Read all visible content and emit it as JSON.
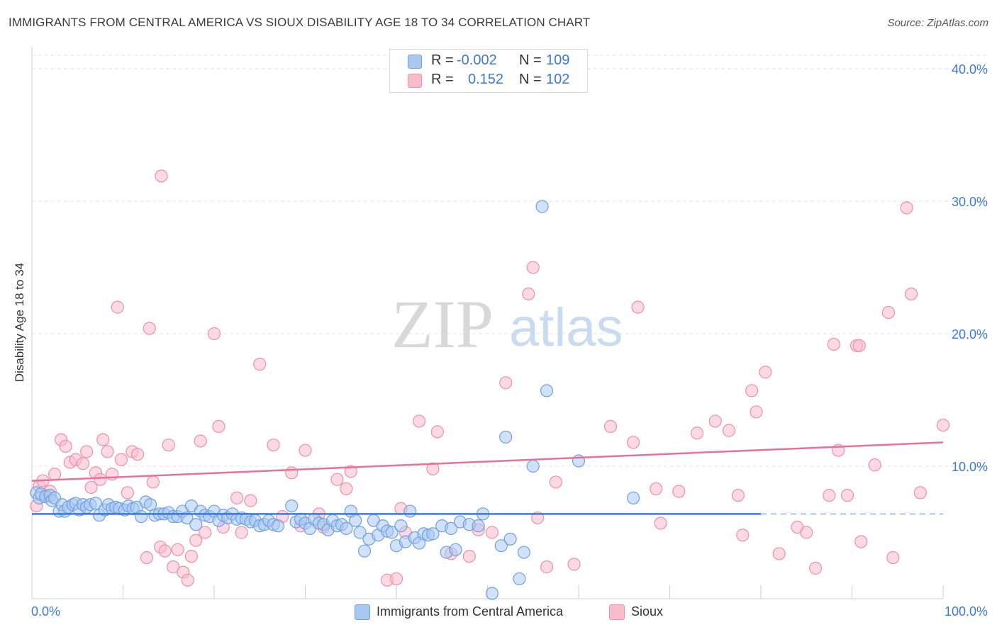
{
  "title": "IMMIGRANTS FROM CENTRAL AMERICA VS SIOUX DISABILITY AGE 18 TO 34 CORRELATION CHART",
  "source": "Source: ZipAtlas.com",
  "watermark": {
    "zip": "ZIP",
    "atlas": "atlas"
  },
  "legend": {
    "r_label": "R =",
    "n_label": "N =",
    "rows": [
      {
        "r": "-0.002",
        "n": "109",
        "color": "#a9c8f2"
      },
      {
        "r": "0.152",
        "n": "102",
        "color": "#f9bccd"
      }
    ]
  },
  "colors": {
    "blue_fill": "#a9c8f2",
    "blue_stroke": "#6fa1e0",
    "blue_line": "#3b79d8",
    "pink_fill": "#f9bccd",
    "pink_stroke": "#ee8fab",
    "pink_line": "#e8709a",
    "tick_label": "#3b79d8",
    "grid": "#e3e3e3"
  },
  "chart_data": {
    "type": "scatter",
    "title": "IMMIGRANTS FROM CENTRAL AMERICA VS SIOUX DISABILITY AGE 18 TO 34 CORRELATION CHART",
    "xlabel": "",
    "ylabel": "Disability Age 18 to 34",
    "xlim": [
      0,
      100
    ],
    "ylim": [
      0,
      40
    ],
    "x_tick_labels": [
      "0.0%",
      "100.0%"
    ],
    "y_ticks": [
      10,
      20,
      30,
      40
    ],
    "y_tick_labels": [
      "10.0%",
      "20.0%",
      "30.0%",
      "40.0%"
    ],
    "grid": true,
    "legend_placement": "top-center",
    "series": [
      {
        "name": "Immigrants from Central America",
        "R": -0.002,
        "N": 109,
        "trend": {
          "x": [
            0,
            80
          ],
          "y": [
            6.4,
            6.4
          ],
          "dashed_extension_to": 100
        },
        "points": [
          [
            0.5,
            8.0
          ],
          [
            0.8,
            7.6
          ],
          [
            1.0,
            7.9
          ],
          [
            1.5,
            7.7
          ],
          [
            2.0,
            7.8
          ],
          [
            2.2,
            7.4
          ],
          [
            2.5,
            7.6
          ],
          [
            3.0,
            6.6
          ],
          [
            3.3,
            7.1
          ],
          [
            3.6,
            6.6
          ],
          [
            4.0,
            6.9
          ],
          [
            4.5,
            7.1
          ],
          [
            4.8,
            7.2
          ],
          [
            5.2,
            6.7
          ],
          [
            5.6,
            7.1
          ],
          [
            6.0,
            6.9
          ],
          [
            6.4,
            7.1
          ],
          [
            7.0,
            7.2
          ],
          [
            7.4,
            6.3
          ],
          [
            8.0,
            6.7
          ],
          [
            8.4,
            7.1
          ],
          [
            8.8,
            6.8
          ],
          [
            9.2,
            6.9
          ],
          [
            9.6,
            6.8
          ],
          [
            10.2,
            6.7
          ],
          [
            10.6,
            7.0
          ],
          [
            11.1,
            6.8
          ],
          [
            11.5,
            6.9
          ],
          [
            12.0,
            6.2
          ],
          [
            12.5,
            7.3
          ],
          [
            13.0,
            7.1
          ],
          [
            13.5,
            6.3
          ],
          [
            14.0,
            6.4
          ],
          [
            14.5,
            6.4
          ],
          [
            15.0,
            6.5
          ],
          [
            15.5,
            6.2
          ],
          [
            16.0,
            6.2
          ],
          [
            16.5,
            6.6
          ],
          [
            17.0,
            6.1
          ],
          [
            17.5,
            7.0
          ],
          [
            18.0,
            5.6
          ],
          [
            18.5,
            6.6
          ],
          [
            19.0,
            6.3
          ],
          [
            19.5,
            6.2
          ],
          [
            20.0,
            6.6
          ],
          [
            20.5,
            5.9
          ],
          [
            21.0,
            6.3
          ],
          [
            21.5,
            6.1
          ],
          [
            22.0,
            6.4
          ],
          [
            22.5,
            6.0
          ],
          [
            23.0,
            6.1
          ],
          [
            23.5,
            6.0
          ],
          [
            24.0,
            5.8
          ],
          [
            24.5,
            5.9
          ],
          [
            25.0,
            5.5
          ],
          [
            25.5,
            5.6
          ],
          [
            26.0,
            5.9
          ],
          [
            26.5,
            5.6
          ],
          [
            27.0,
            5.5
          ],
          [
            28.5,
            7.0
          ],
          [
            29.0,
            5.8
          ],
          [
            29.5,
            6.0
          ],
          [
            30.0,
            5.7
          ],
          [
            30.5,
            5.3
          ],
          [
            31.0,
            6.0
          ],
          [
            31.5,
            5.7
          ],
          [
            32.0,
            5.6
          ],
          [
            32.5,
            5.2
          ],
          [
            33.0,
            5.9
          ],
          [
            33.5,
            5.5
          ],
          [
            34.0,
            5.6
          ],
          [
            34.5,
            5.3
          ],
          [
            35.0,
            6.6
          ],
          [
            35.5,
            5.9
          ],
          [
            36.0,
            5.0
          ],
          [
            36.5,
            3.6
          ],
          [
            37.0,
            4.5
          ],
          [
            37.5,
            5.9
          ],
          [
            38.0,
            4.8
          ],
          [
            38.5,
            5.5
          ],
          [
            39.0,
            5.1
          ],
          [
            39.5,
            5.0
          ],
          [
            40.0,
            4.0
          ],
          [
            40.5,
            5.5
          ],
          [
            41.0,
            4.3
          ],
          [
            41.5,
            6.6
          ],
          [
            42.0,
            4.6
          ],
          [
            42.5,
            4.2
          ],
          [
            43.0,
            4.9
          ],
          [
            43.5,
            4.8
          ],
          [
            44.0,
            4.9
          ],
          [
            45.0,
            5.5
          ],
          [
            45.5,
            3.5
          ],
          [
            46.0,
            5.3
          ],
          [
            46.5,
            3.7
          ],
          [
            47.0,
            5.8
          ],
          [
            48.0,
            5.6
          ],
          [
            49.0,
            5.5
          ],
          [
            49.5,
            6.4
          ],
          [
            50.5,
            0.4
          ],
          [
            51.5,
            4.0
          ],
          [
            52.5,
            4.5
          ],
          [
            53.5,
            1.5
          ],
          [
            54.0,
            3.5
          ],
          [
            56.0,
            29.6
          ],
          [
            56.5,
            15.7
          ],
          [
            52.0,
            12.2
          ],
          [
            55.0,
            10.0
          ],
          [
            60.0,
            10.4
          ],
          [
            66.0,
            7.6
          ]
        ]
      },
      {
        "name": "Sioux",
        "R": 0.152,
        "N": 102,
        "trend": {
          "x": [
            0,
            100
          ],
          "y": [
            8.9,
            11.8
          ]
        },
        "points": [
          [
            0.5,
            7.0
          ],
          [
            0.8,
            8.5
          ],
          [
            1.2,
            8.9
          ],
          [
            1.6,
            7.8
          ],
          [
            2.0,
            8.1
          ],
          [
            2.5,
            9.4
          ],
          [
            3.2,
            12.0
          ],
          [
            3.7,
            11.5
          ],
          [
            4.2,
            10.3
          ],
          [
            4.8,
            10.5
          ],
          [
            5.6,
            10.2
          ],
          [
            6.0,
            11.1
          ],
          [
            6.5,
            8.4
          ],
          [
            7.0,
            9.5
          ],
          [
            7.5,
            9.0
          ],
          [
            7.8,
            12.0
          ],
          [
            8.3,
            11.1
          ],
          [
            8.8,
            9.4
          ],
          [
            9.4,
            22.0
          ],
          [
            9.8,
            10.5
          ],
          [
            10.5,
            8.0
          ],
          [
            11.0,
            11.1
          ],
          [
            11.6,
            10.9
          ],
          [
            12.6,
            3.1
          ],
          [
            12.9,
            20.4
          ],
          [
            13.3,
            8.8
          ],
          [
            14.1,
            3.9
          ],
          [
            14.2,
            31.9
          ],
          [
            14.6,
            3.6
          ],
          [
            15.0,
            11.6
          ],
          [
            15.5,
            2.4
          ],
          [
            16.0,
            3.7
          ],
          [
            16.6,
            2.0
          ],
          [
            17.1,
            1.4
          ],
          [
            17.5,
            3.2
          ],
          [
            18.0,
            4.4
          ],
          [
            18.5,
            11.9
          ],
          [
            19.0,
            5.0
          ],
          [
            20.0,
            20.0
          ],
          [
            20.5,
            13.0
          ],
          [
            21.0,
            5.4
          ],
          [
            22.5,
            7.6
          ],
          [
            23.0,
            5.0
          ],
          [
            24.0,
            7.4
          ],
          [
            25.0,
            17.7
          ],
          [
            26.5,
            11.6
          ],
          [
            27.5,
            6.2
          ],
          [
            28.5,
            9.5
          ],
          [
            29.5,
            5.5
          ],
          [
            30.0,
            11.2
          ],
          [
            31.5,
            6.4
          ],
          [
            32.0,
            5.4
          ],
          [
            33.5,
            9.0
          ],
          [
            34.5,
            8.3
          ],
          [
            35.0,
            9.6
          ],
          [
            39.0,
            1.4
          ],
          [
            40.0,
            1.5
          ],
          [
            40.5,
            6.8
          ],
          [
            41.0,
            5.0
          ],
          [
            42.5,
            13.4
          ],
          [
            44.0,
            9.8
          ],
          [
            44.5,
            12.6
          ],
          [
            46.0,
            3.4
          ],
          [
            48.0,
            3.2
          ],
          [
            49.0,
            5.2
          ],
          [
            50.5,
            5.0
          ],
          [
            52.0,
            16.3
          ],
          [
            54.5,
            23.0
          ],
          [
            55.0,
            25.0
          ],
          [
            55.5,
            6.1
          ],
          [
            56.5,
            2.4
          ],
          [
            57.5,
            8.8
          ],
          [
            59.5,
            2.6
          ],
          [
            63.5,
            13.0
          ],
          [
            66.0,
            11.8
          ],
          [
            66.5,
            22.0
          ],
          [
            68.5,
            8.3
          ],
          [
            69.0,
            5.7
          ],
          [
            71.0,
            8.1
          ],
          [
            73.0,
            12.5
          ],
          [
            75.0,
            13.4
          ],
          [
            76.5,
            12.7
          ],
          [
            77.5,
            7.8
          ],
          [
            78.0,
            4.8
          ],
          [
            79.0,
            15.7
          ],
          [
            79.5,
            14.1
          ],
          [
            80.5,
            17.1
          ],
          [
            82.0,
            3.4
          ],
          [
            84.0,
            5.4
          ],
          [
            85.0,
            5.0
          ],
          [
            86.0,
            2.3
          ],
          [
            87.5,
            7.8
          ],
          [
            88.0,
            19.2
          ],
          [
            88.5,
            11.2
          ],
          [
            89.5,
            7.8
          ],
          [
            90.5,
            19.1
          ],
          [
            90.8,
            19.1
          ],
          [
            91.0,
            4.3
          ],
          [
            92.5,
            10.1
          ],
          [
            94.0,
            21.6
          ],
          [
            94.5,
            3.1
          ],
          [
            96.0,
            29.5
          ],
          [
            96.5,
            23.0
          ],
          [
            97.5,
            8.0
          ],
          [
            100.0,
            13.1
          ]
        ]
      }
    ]
  },
  "bottom_legend": [
    {
      "label": "Immigrants from Central America",
      "color": "#a9c8f2"
    },
    {
      "label": "Sioux",
      "color": "#f9bccd"
    }
  ]
}
